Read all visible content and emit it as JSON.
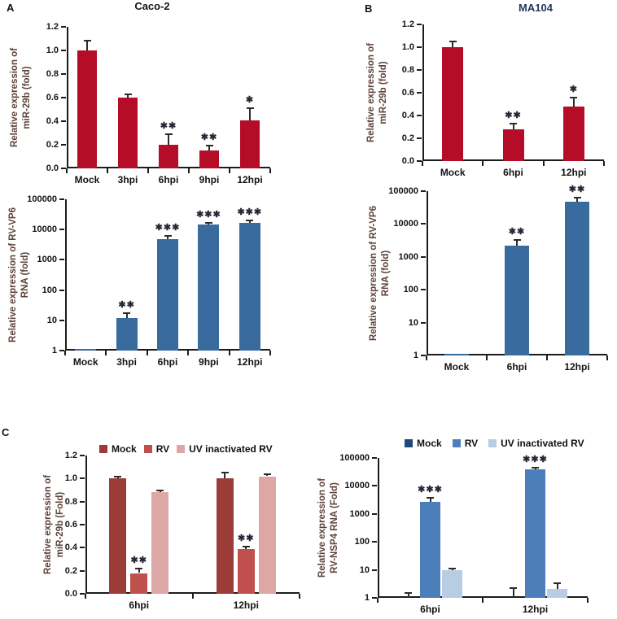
{
  "panels": {
    "a": "A",
    "b": "B",
    "c": "C"
  },
  "titles": {
    "caco2": "Caco-2",
    "ma104": "MA104"
  },
  "colors": {
    "red_bar": "#b50d28",
    "blue_bar": "#3a6b9f",
    "mock_red": "#9c3c39",
    "rv_red": "#c0504d",
    "uv_pink": "#dda7a5",
    "mock_blue": "#1f497d",
    "rv_blue": "#4c7fba",
    "uv_blue": "#b8cce4",
    "axis": "#1c1c1c",
    "ylabel_text": "#5d4238"
  },
  "chart_data": [
    {
      "id": "a_top",
      "type": "bar",
      "scale": "linear",
      "ylim": [
        0,
        1.2
      ],
      "title": "Caco-2",
      "ylabel_lines": [
        "Relative expression of",
        "miR-29b (fold)"
      ],
      "yticks": [
        {
          "v": 0,
          "l": "0.0"
        },
        {
          "v": 0.2,
          "l": "0.2"
        },
        {
          "v": 0.4,
          "l": "0.4"
        },
        {
          "v": 0.6,
          "l": "0.6"
        },
        {
          "v": 0.8,
          "l": "0.8"
        },
        {
          "v": 1.0,
          "l": "1.0"
        },
        {
          "v": 1.2,
          "l": "1.2"
        }
      ],
      "categories": [
        "Mock",
        "3hpi",
        "6hpi",
        "9hpi",
        "12hpi"
      ],
      "series": [
        {
          "name": "",
          "color": "#b50d28",
          "values": [
            1.0,
            0.6,
            0.2,
            0.15,
            0.41
          ],
          "err_top": [
            1.08,
            0.63,
            0.29,
            0.19,
            0.51
          ],
          "sig": [
            "",
            "",
            "**",
            "**",
            "*"
          ]
        }
      ]
    },
    {
      "id": "a_bottom",
      "type": "bar",
      "scale": "log",
      "ylim": [
        1,
        100000
      ],
      "title": "",
      "ylabel_lines": [
        "Relative expression of RV-VP6",
        "RNA (fold)"
      ],
      "yticks": [
        {
          "v": 1,
          "l": "1"
        },
        {
          "v": 10,
          "l": "10"
        },
        {
          "v": 100,
          "l": "100"
        },
        {
          "v": 1000,
          "l": "1000"
        },
        {
          "v": 10000,
          "l": "10000"
        },
        {
          "v": 100000,
          "l": "100000"
        }
      ],
      "categories": [
        "Mock",
        "3hpi",
        "6hpi",
        "9hpi",
        "12hpi"
      ],
      "series": [
        {
          "name": "",
          "color": "#3a6b9f",
          "values": [
            1.12,
            12,
            4700,
            15000,
            17000
          ],
          "err_top": [
            null,
            17,
            6200,
            17000,
            20000
          ],
          "sig": [
            "",
            "**",
            "***",
            "***",
            "***"
          ]
        }
      ]
    },
    {
      "id": "b_top",
      "type": "bar",
      "scale": "linear",
      "ylim": [
        0,
        1.2
      ],
      "title": "MA104",
      "ylabel_lines": [
        "Relative expression of",
        "miR-29b (fold)"
      ],
      "yticks": [
        {
          "v": 0,
          "l": "0.0"
        },
        {
          "v": 0.2,
          "l": "0.2"
        },
        {
          "v": 0.4,
          "l": "0.4"
        },
        {
          "v": 0.6,
          "l": "0.6"
        },
        {
          "v": 0.8,
          "l": "0.8"
        },
        {
          "v": 1.0,
          "l": "1.0"
        },
        {
          "v": 1.2,
          "l": "1.2"
        }
      ],
      "categories": [
        "Mock",
        "6hpi",
        "12hpi"
      ],
      "series": [
        {
          "name": "",
          "color": "#b50d28",
          "values": [
            1.0,
            0.28,
            0.48
          ],
          "err_top": [
            1.05,
            0.33,
            0.56
          ],
          "sig": [
            "",
            "**",
            "*"
          ]
        }
      ]
    },
    {
      "id": "b_bottom",
      "type": "bar",
      "scale": "log",
      "ylim": [
        1,
        100000
      ],
      "title": "",
      "ylabel_lines": [
        "Relative expression of RV-VP6",
        "RNA (fold)"
      ],
      "yticks": [
        {
          "v": 1,
          "l": "1"
        },
        {
          "v": 10,
          "l": "10"
        },
        {
          "v": 100,
          "l": "100"
        },
        {
          "v": 1000,
          "l": "1000"
        },
        {
          "v": 10000,
          "l": "10000"
        },
        {
          "v": 100000,
          "l": "100000"
        }
      ],
      "categories": [
        "Mock",
        "6hpi",
        "12hpi"
      ],
      "series": [
        {
          "name": "",
          "color": "#3a6b9f",
          "values": [
            1.12,
            2200,
            48000
          ],
          "err_top": [
            null,
            3300,
            62000
          ],
          "sig": [
            "",
            "**",
            "**"
          ]
        }
      ]
    },
    {
      "id": "c_left",
      "type": "bar",
      "scale": "linear",
      "ylim": [
        0,
        1.2
      ],
      "title": "",
      "ylabel_lines": [
        "Relative expression of",
        "miR-29b (Fold)"
      ],
      "yticks": [
        {
          "v": 0,
          "l": "0.0"
        },
        {
          "v": 0.2,
          "l": "0.2"
        },
        {
          "v": 0.4,
          "l": "0.4"
        },
        {
          "v": 0.6,
          "l": "0.6"
        },
        {
          "v": 0.8,
          "l": "0.8"
        },
        {
          "v": 1.0,
          "l": "1.0"
        },
        {
          "v": 1.2,
          "l": "1.2"
        }
      ],
      "categories": [
        "6hpi",
        "12hpi"
      ],
      "legend_position": "top",
      "series": [
        {
          "name": "Mock",
          "color": "#9c3c39",
          "values": [
            1.0,
            1.0
          ],
          "err_top": [
            1.02,
            1.05
          ],
          "sig": [
            "",
            ""
          ]
        },
        {
          "name": "RV",
          "color": "#c0504d",
          "values": [
            0.18,
            0.39
          ],
          "err_top": [
            0.22,
            0.41
          ],
          "sig": [
            "**",
            "**"
          ]
        },
        {
          "name": "UV inactivated RV",
          "color": "#dda7a5",
          "values": [
            0.88,
            1.02
          ],
          "err_top": [
            0.9,
            1.04
          ],
          "sig": [
            "",
            ""
          ]
        }
      ]
    },
    {
      "id": "c_right",
      "type": "bar",
      "scale": "log",
      "ylim": [
        1,
        100000
      ],
      "title": "",
      "ylabel_lines": [
        "Relative expression of",
        "RV-NSP4 RNA (Fold)"
      ],
      "yticks": [
        {
          "v": 1,
          "l": "1"
        },
        {
          "v": 10,
          "l": "10"
        },
        {
          "v": 100,
          "l": "100"
        },
        {
          "v": 1000,
          "l": "1000"
        },
        {
          "v": 10000,
          "l": "10000"
        },
        {
          "v": 100000,
          "l": "100000"
        }
      ],
      "categories": [
        "6hpi",
        "12hpi"
      ],
      "legend_position": "top",
      "series": [
        {
          "name": "Mock",
          "color": "#1f497d",
          "values": [
            1.0,
            1.0
          ],
          "err_top": [
            1.5,
            2.3
          ],
          "sig": [
            "",
            ""
          ]
        },
        {
          "name": "RV",
          "color": "#4c7fba",
          "values": [
            2700,
            40000
          ],
          "err_top": [
            3700,
            44000
          ],
          "sig": [
            "***",
            "***"
          ]
        },
        {
          "name": "UV inactivated RV",
          "color": "#b8cce4",
          "values": [
            9.5,
            2.1
          ],
          "err_top": [
            11.5,
            3.3
          ],
          "sig": [
            "",
            ""
          ]
        }
      ]
    }
  ]
}
